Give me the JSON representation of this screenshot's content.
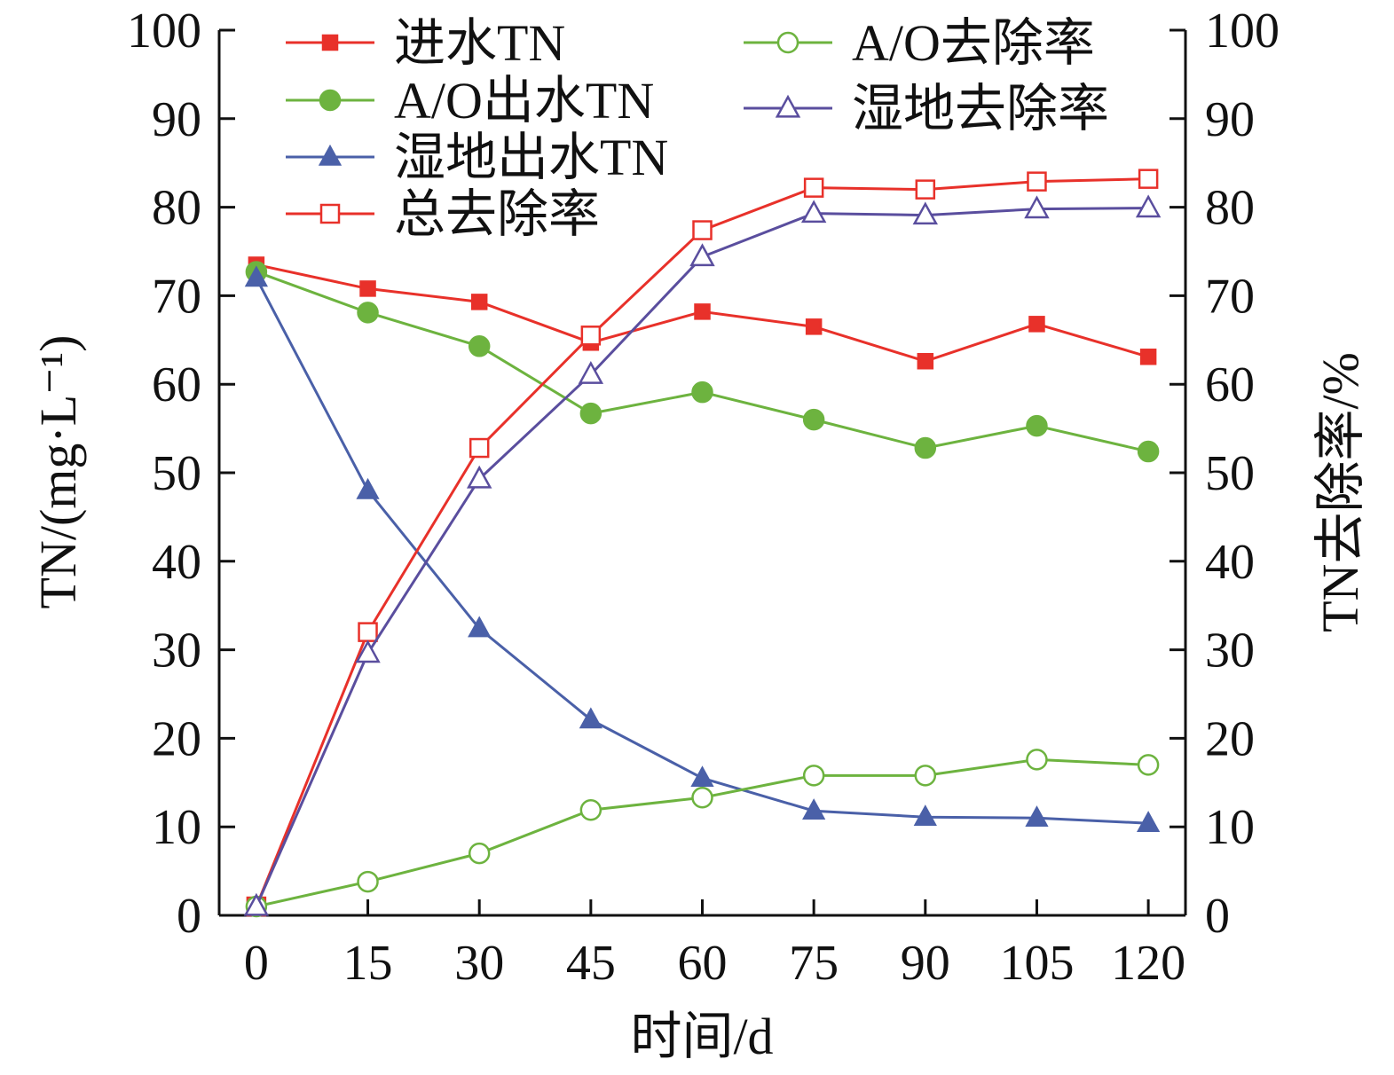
{
  "chart_data": {
    "type": "line",
    "title": "",
    "xlabel": "时间/d",
    "ylabel": "TN/(mg·L⁻¹)",
    "ylabel_right": "TN去除率/%",
    "x": [
      0,
      15,
      30,
      45,
      60,
      75,
      90,
      105,
      120
    ],
    "x_ticks": [
      "0",
      "15",
      "30",
      "45",
      "60",
      "75",
      "90",
      "105",
      "120"
    ],
    "y_ticks": [
      "0",
      "10",
      "20",
      "30",
      "40",
      "50",
      "60",
      "70",
      "80",
      "90",
      "100"
    ],
    "y2_ticks": [
      "0",
      "10",
      "20",
      "30",
      "40",
      "50",
      "60",
      "70",
      "80",
      "90",
      "100"
    ],
    "xlim": [
      -5,
      125
    ],
    "ylim": [
      0,
      100
    ],
    "y2lim": [
      0,
      100
    ],
    "grid": false,
    "legend_position": "top",
    "series": [
      {
        "name": "进水TN",
        "axis": "left",
        "color": "#e8312a",
        "marker": "square-filled",
        "values": [
          73.5,
          70.8,
          69.3,
          64.7,
          68.2,
          66.5,
          62.6,
          66.8,
          63.1
        ]
      },
      {
        "name": "A/O出水TN",
        "axis": "left",
        "color": "#6db33f",
        "marker": "circle-filled",
        "values": [
          72.7,
          68.1,
          64.3,
          56.7,
          59.1,
          56.0,
          52.8,
          55.3,
          52.4
        ]
      },
      {
        "name": "湿地出水TN",
        "axis": "left",
        "color": "#4a60a8",
        "marker": "triangle-filled",
        "values": [
          72.0,
          48.0,
          32.4,
          22.1,
          15.5,
          11.8,
          11.1,
          11.0,
          10.4
        ]
      },
      {
        "name": "总去除率",
        "axis": "right",
        "color": "#e8312a",
        "marker": "square-open",
        "values": [
          1.0,
          32.0,
          52.8,
          65.5,
          77.4,
          82.2,
          82.0,
          82.9,
          83.2
        ]
      },
      {
        "name": "A/O去除率",
        "axis": "right",
        "color": "#6db33f",
        "marker": "circle-open",
        "values": [
          1.0,
          3.8,
          7.0,
          11.9,
          13.3,
          15.8,
          15.8,
          17.6,
          17.0
        ]
      },
      {
        "name": "湿地去除率",
        "axis": "right",
        "color": "#5a4e9e",
        "marker": "triangle-open",
        "values": [
          1.0,
          29.6,
          49.3,
          61.1,
          74.4,
          79.3,
          79.1,
          79.8,
          79.9
        ]
      }
    ]
  }
}
